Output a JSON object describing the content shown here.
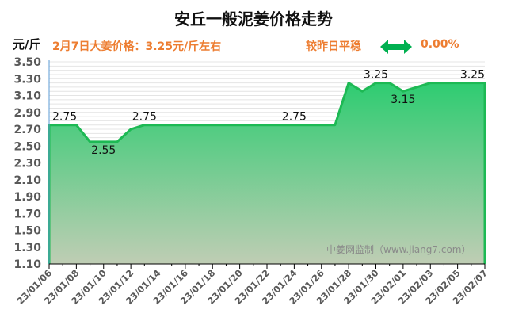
{
  "header": {
    "title": "安丘一般泥姜价格走势",
    "unit": "元/斤",
    "headline": "2月7日大姜价格：3.25元/斤左右",
    "compare_label": "较昨日平稳",
    "change_pct": "0.00%",
    "trend_icon": "double-arrow-flat-icon"
  },
  "watermark": "中姜网监制（www.jiang7.com）",
  "colors": {
    "accent_text": "#ed7d31",
    "line": "#1db954",
    "fill_top": "#2ecc71",
    "fill_bottom": "#bfcdb4",
    "arrow": "#00b050"
  },
  "chart_data": {
    "type": "area",
    "title": "安丘一般泥姜价格走势",
    "xlabel": "",
    "ylabel": "元/斤",
    "ylim": [
      1.1,
      3.5
    ],
    "yticks": [
      "3.50",
      "3.30",
      "3.10",
      "2.90",
      "2.70",
      "2.50",
      "2.30",
      "2.10",
      "1.90",
      "1.70",
      "1.50",
      "1.30",
      "1.10"
    ],
    "xtick_labels": [
      "23/01/06",
      "23/01/08",
      "23/01/10",
      "23/01/12",
      "23/01/14",
      "23/01/16",
      "23/01/18",
      "23/01/20",
      "23/01/22",
      "23/01/24",
      "23/01/26",
      "23/01/28",
      "23/01/30",
      "23/02/01",
      "23/02/03",
      "23/02/05",
      "23/02/07"
    ],
    "grid": true,
    "legend": false,
    "x": [
      "23/01/06",
      "23/01/07",
      "23/01/08",
      "23/01/09",
      "23/01/10",
      "23/01/11",
      "23/01/12",
      "23/01/13",
      "23/01/14",
      "23/01/15",
      "23/01/16",
      "23/01/17",
      "23/01/18",
      "23/01/19",
      "23/01/20",
      "23/01/21",
      "23/01/22",
      "23/01/23",
      "23/01/24",
      "23/01/25",
      "23/01/26",
      "23/01/27",
      "23/01/28",
      "23/01/29",
      "23/01/30",
      "23/01/31",
      "23/02/01",
      "23/02/02",
      "23/02/03",
      "23/02/04",
      "23/02/05",
      "23/02/06",
      "23/02/07"
    ],
    "series": [
      {
        "name": "安丘一般泥姜价格",
        "values": [
          2.75,
          2.75,
          2.75,
          2.55,
          2.55,
          2.55,
          2.7,
          2.75,
          2.75,
          2.75,
          2.75,
          2.75,
          2.75,
          2.75,
          2.75,
          2.75,
          2.75,
          2.75,
          2.75,
          2.75,
          2.75,
          2.75,
          3.25,
          3.15,
          3.25,
          3.25,
          3.15,
          3.2,
          3.25,
          3.25,
          3.25,
          3.25,
          3.25
        ]
      }
    ],
    "annotations": [
      {
        "x": "23/01/06",
        "label": "2.75"
      },
      {
        "x": "23/01/10",
        "label": "2.55"
      },
      {
        "x": "23/01/13",
        "label": "2.75"
      },
      {
        "x": "23/01/24",
        "label": "2.75"
      },
      {
        "x": "23/01/30",
        "label": "3.25"
      },
      {
        "x": "23/02/01",
        "label": "3.15"
      },
      {
        "x": "23/02/07",
        "label": "3.25"
      }
    ]
  }
}
